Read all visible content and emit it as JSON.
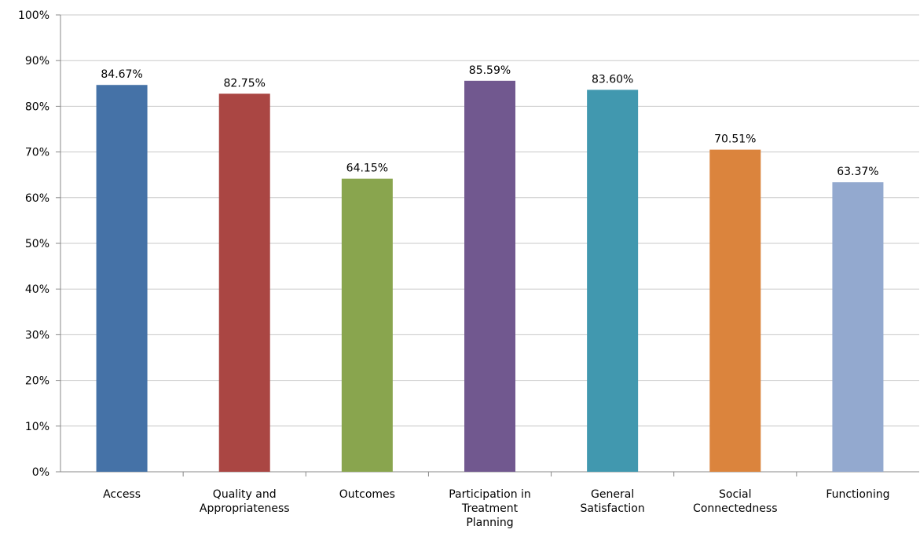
{
  "chart_data": {
    "type": "bar",
    "categories": [
      [
        "Access"
      ],
      [
        "Quality and",
        "Appropriateness"
      ],
      [
        "Outcomes"
      ],
      [
        "Participation in",
        "Treatment",
        "Planning"
      ],
      [
        "General",
        "Satisfaction"
      ],
      [
        "Social",
        "Connectedness"
      ],
      [
        "Functioning"
      ]
    ],
    "values": [
      84.67,
      82.75,
      64.15,
      85.59,
      83.6,
      70.51,
      63.37
    ],
    "data_labels": [
      "84.67%",
      "82.75%",
      "64.15%",
      "85.59%",
      "83.60%",
      "70.51%",
      "63.37%"
    ],
    "colors": [
      "#4572A7",
      "#AA4643",
      "#89A54E",
      "#71588F",
      "#4198AF",
      "#DB843D",
      "#93A9CF"
    ],
    "y_ticks": [
      "0%",
      "10%",
      "20%",
      "30%",
      "40%",
      "50%",
      "60%",
      "70%",
      "80%",
      "90%",
      "100%"
    ],
    "ylim": [
      0,
      100
    ],
    "grid": true,
    "title": "",
    "xlabel": "",
    "ylabel": ""
  }
}
